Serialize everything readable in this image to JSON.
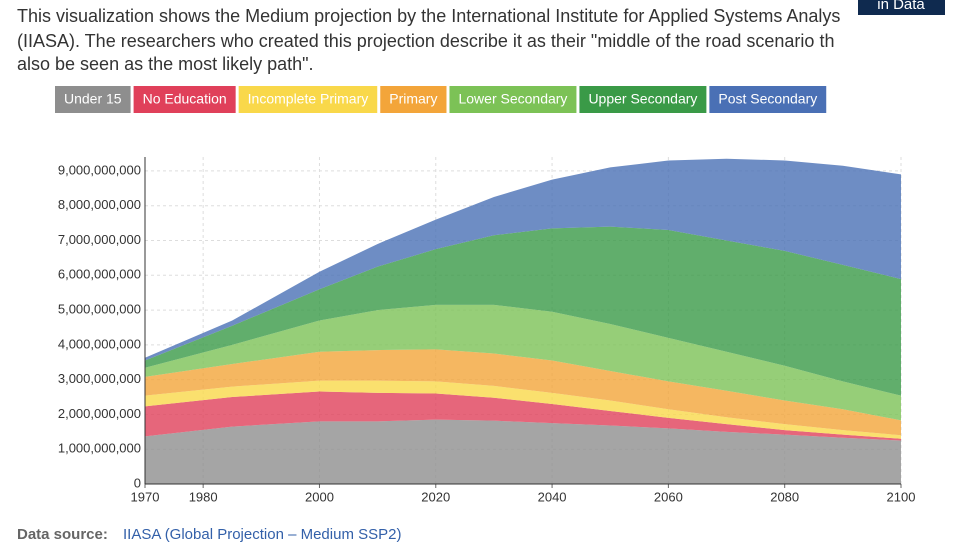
{
  "header": {
    "lines": [
      "This visualization shows the Medium projection by the International Institute for Applied Systems Analys",
      "(IIASA). The researchers who created this projection describe it as their \"middle of the road scenario th",
      "also be seen as the most likely path\"."
    ],
    "logo": "in Data"
  },
  "chart_data": {
    "type": "stacked_area",
    "x": [
      1970,
      1985,
      2000,
      2010,
      2020,
      2030,
      2040,
      2050,
      2060,
      2070,
      2080,
      2090,
      2100
    ],
    "series": [
      {
        "name": "Under 15",
        "color": "#8e8e8e",
        "values": [
          1370000000,
          1650000000,
          1800000000,
          1800000000,
          1850000000,
          1820000000,
          1750000000,
          1680000000,
          1600000000,
          1500000000,
          1420000000,
          1330000000,
          1250000000
        ]
      },
      {
        "name": "No Education",
        "color": "#e0405a",
        "values": [
          860000000,
          850000000,
          860000000,
          820000000,
          750000000,
          660000000,
          550000000,
          420000000,
          300000000,
          220000000,
          130000000,
          90000000,
          50000000
        ]
      },
      {
        "name": "Incomplete Primary",
        "color": "#f9d84a",
        "values": [
          310000000,
          300000000,
          310000000,
          350000000,
          350000000,
          340000000,
          320000000,
          300000000,
          250000000,
          200000000,
          170000000,
          130000000,
          100000000
        ]
      },
      {
        "name": "Primary",
        "color": "#f3a53a",
        "values": [
          540000000,
          650000000,
          830000000,
          880000000,
          920000000,
          930000000,
          930000000,
          850000000,
          800000000,
          760000000,
          680000000,
          600000000,
          430000000
        ]
      },
      {
        "name": "Lower Secondary",
        "color": "#7cc256",
        "values": [
          260000000,
          550000000,
          900000000,
          1150000000,
          1280000000,
          1400000000,
          1400000000,
          1350000000,
          1250000000,
          1120000000,
          1000000000,
          800000000,
          710000000
        ]
      },
      {
        "name": "Upper Secondary",
        "color": "#3a9a47",
        "values": [
          210000000,
          550000000,
          900000000,
          1250000000,
          1600000000,
          2000000000,
          2400000000,
          2800000000,
          3100000000,
          3200000000,
          3300000000,
          3350000000,
          3350000000
        ]
      },
      {
        "name": "Post Secondary",
        "color": "#4a70b5",
        "values": [
          80000000,
          150000000,
          500000000,
          650000000,
          850000000,
          1100000000,
          1400000000,
          1700000000,
          2000000000,
          2350000000,
          2600000000,
          2850000000,
          3010000000
        ]
      }
    ],
    "xlim": [
      1970,
      2100
    ],
    "xticks": [
      1970,
      1980,
      2000,
      2020,
      2040,
      2060,
      2080,
      2100
    ],
    "ylim": [
      0,
      9400000000
    ],
    "yticks": [
      0,
      {
        "value": 1000000000,
        "label": "1,000,000,000"
      },
      {
        "value": 2000000000,
        "label": "2,000,000,000"
      },
      {
        "value": 3000000000,
        "label": "3,000,000,000"
      },
      {
        "value": 4000000000,
        "label": "4,000,000,000"
      },
      {
        "value": 5000000000,
        "label": "5,000,000,000"
      },
      {
        "value": 6000000000,
        "label": "6,000,000,000"
      },
      {
        "value": 7000000000,
        "label": "7,000,000,000"
      },
      {
        "value": 8000000000,
        "label": "8,000,000,000"
      },
      {
        "value": 9000000000,
        "label": "9,000,000,000"
      }
    ],
    "grid": true
  },
  "footer": {
    "label": "Data source:",
    "source": "IIASA (Global Projection – Medium SSP2)"
  }
}
